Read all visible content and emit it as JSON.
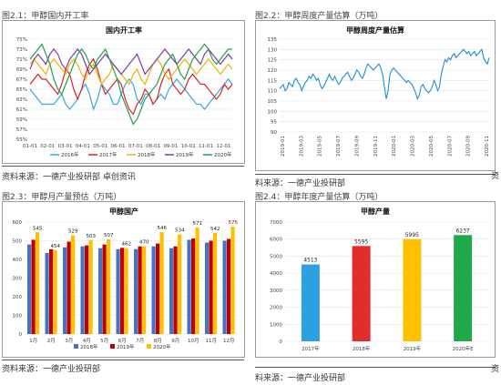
{
  "fig1": {
    "caption": "图2.1：甲醇国内开工率",
    "source": "资料来源：一德产业投研部  卓创资讯",
    "chart_data": {
      "type": "line",
      "title": "国内开工率",
      "yticks": [
        "75%",
        "73%",
        "71%",
        "69%",
        "67%",
        "65%",
        "63%",
        "61%",
        "59%",
        "57%",
        "55%"
      ],
      "ylim": [
        55,
        75
      ],
      "xticks": [
        "01-01",
        "02-01",
        "03-01",
        "04-01",
        "05-01",
        "06-01",
        "07-01",
        "08-01",
        "09-01",
        "10-01",
        "11-01",
        "12-01"
      ],
      "legend_position": "bottom",
      "series": [
        {
          "name": "2016年",
          "color": "#33aadd",
          "values": [
            65,
            64,
            63,
            62,
            62,
            62,
            62,
            63,
            64,
            62,
            61,
            62,
            63,
            65,
            66,
            64,
            61,
            63,
            66,
            65,
            64,
            62,
            62,
            64,
            66,
            67,
            66,
            63,
            62,
            64,
            64,
            62,
            63,
            64,
            63,
            65,
            66,
            67,
            66,
            65,
            64,
            63,
            62,
            62,
            61,
            62,
            63,
            64,
            65,
            66,
            67,
            66
          ]
        },
        {
          "name": "2017年",
          "color": "#dd2222",
          "values": [
            66,
            67,
            68,
            67,
            67,
            66,
            65,
            64,
            66,
            69,
            68,
            65,
            63,
            65,
            68,
            70,
            71,
            69,
            66,
            64,
            65,
            66,
            67,
            66,
            63,
            61,
            60,
            62,
            63,
            65,
            64,
            62,
            63,
            66,
            68,
            69,
            66,
            65,
            64,
            65,
            67,
            68,
            67,
            66,
            66,
            65,
            64,
            63,
            64,
            66,
            65,
            66
          ]
        },
        {
          "name": "2018年",
          "color": "#f0b400",
          "values": [
            70,
            71,
            70,
            69,
            68,
            70,
            71,
            70,
            69,
            68,
            70,
            71,
            70,
            68,
            67,
            69,
            70,
            68,
            66,
            67,
            68,
            70,
            69,
            68,
            67,
            66,
            68,
            69,
            67,
            66,
            68,
            70,
            71,
            70,
            68,
            67,
            68,
            69,
            70,
            71,
            70,
            69,
            68,
            69,
            70,
            71,
            70,
            69,
            68,
            69,
            70,
            69
          ]
        },
        {
          "name": "2019年",
          "color": "#7a3fa0",
          "values": [
            69,
            71,
            72,
            71,
            70,
            72,
            73,
            72,
            70,
            69,
            71,
            72,
            73,
            72,
            70,
            68,
            69,
            70,
            71,
            72,
            71,
            70,
            69,
            68,
            69,
            70,
            71,
            72,
            70,
            68,
            69,
            70,
            71,
            72,
            73,
            72,
            71,
            70,
            71,
            72,
            73,
            72,
            71,
            70,
            72,
            73,
            72,
            71,
            70,
            71,
            72,
            71
          ]
        },
        {
          "name": "2020年",
          "color": "#22a050",
          "values": [
            71,
            72,
            73,
            74,
            72,
            70,
            67,
            65,
            64,
            66,
            68,
            70,
            72,
            73,
            72,
            70,
            69,
            71,
            72,
            73,
            71,
            69,
            67,
            64,
            62,
            60,
            58,
            59,
            61,
            63,
            64,
            65,
            66,
            68,
            70,
            71,
            72,
            70,
            68,
            67,
            69,
            71,
            72,
            73,
            74,
            73,
            71,
            70,
            71,
            72,
            73,
            73
          ]
        }
      ]
    }
  },
  "fig2": {
    "caption": "图2.2：甲醇周度产量估算（万吨）",
    "source": "料来源：一德产业投研部",
    "chart_data": {
      "type": "line",
      "title": "甲醇周度产量估算",
      "yticks": [
        "135",
        "130",
        "125",
        "120",
        "115",
        "110",
        "105",
        "100",
        "95",
        "90"
      ],
      "ylim": [
        90,
        135
      ],
      "xticks": [
        "2019-01",
        "2019-03",
        "2019-05",
        "2019-07",
        "2019-09",
        "2019-11",
        "2020-01",
        "2020-03",
        "2020-05",
        "2020-07",
        "2020-09",
        "2020-11"
      ],
      "series": [
        {
          "name": "",
          "color": "#1f8fd6",
          "values": [
            111,
            112,
            113,
            110,
            111,
            114,
            113,
            112,
            115,
            116,
            114,
            113,
            110,
            112,
            114,
            115,
            117,
            116,
            118,
            117,
            115,
            116,
            113,
            111,
            112,
            114,
            116,
            118,
            116,
            115,
            117,
            115,
            113,
            114,
            116,
            117,
            118,
            119,
            117,
            115,
            116,
            118,
            120,
            119,
            117,
            116,
            118,
            121,
            123,
            122,
            121,
            120,
            121,
            122,
            123,
            121,
            118,
            112,
            106,
            110,
            118,
            120,
            121,
            120,
            119,
            118,
            117,
            116,
            115,
            114,
            115,
            114,
            113,
            111,
            109,
            106,
            108,
            112,
            113,
            111,
            110,
            109,
            110,
            112,
            115,
            113,
            110,
            112,
            118,
            122,
            125,
            124,
            126,
            125,
            127,
            128,
            126,
            127,
            128,
            129,
            130,
            129,
            128,
            129,
            127,
            128,
            129,
            127,
            128,
            129,
            130,
            126,
            124,
            123,
            126
          ]
        }
      ]
    }
  },
  "fig3": {
    "caption": "图2.3：甲醇月产量预估（万吨）",
    "source": "资料来源：一德产业投研部",
    "chart_data": {
      "type": "bar",
      "title": "甲醇国产",
      "categories": [
        "1月",
        "2月",
        "3月",
        "4月",
        "5月",
        "6月",
        "7月",
        "8月",
        "9月",
        "10月",
        "11月",
        "12月"
      ],
      "yticks": [
        "600",
        "500",
        "400",
        "300",
        "200",
        "100",
        "0"
      ],
      "ylim": [
        0,
        600
      ],
      "legend_position": "bottom",
      "series": [
        {
          "name": "2018年",
          "color": "#4472c4",
          "values": [
            480,
            435,
            465,
            470,
            460,
            455,
            455,
            470,
            460,
            505,
            490,
            500
          ]
        },
        {
          "name": "2019年",
          "color": "#c00000",
          "values": [
            505,
            454,
            495,
            475,
            480,
            462,
            470,
            485,
            470,
            512,
            500,
            510
          ]
        },
        {
          "name": "2020年",
          "color": "#ffc000",
          "values": [
            545,
            450,
            529,
            503,
            507,
            460,
            470,
            546,
            534,
            571,
            542,
            575
          ]
        }
      ],
      "labels": [
        "545",
        "454",
        "529",
        "503",
        "507",
        "462",
        "470",
        "546",
        "534",
        "571",
        "542",
        "575"
      ]
    }
  },
  "fig4": {
    "caption": "图2.4：甲醇年度产量估算（万吨）",
    "source": "料来源：一德产业投研部",
    "chart_data": {
      "type": "bar",
      "title": "甲醇产量",
      "categories": [
        "2017年",
        "2018年",
        "2019年",
        "2020年E"
      ],
      "values": [
        4513,
        5595,
        5995,
        6237
      ],
      "labels": [
        "4513",
        "5595",
        "5995",
        "6237"
      ],
      "colors": [
        "#2e9fe0",
        "#e22d2d",
        "#ffc000",
        "#21a84a"
      ],
      "yticks": [
        "7000",
        "6000",
        "5000",
        "4000",
        "3000",
        "2000",
        "1000",
        "0"
      ],
      "ylim": [
        0,
        7000
      ]
    }
  },
  "side_glyphs": [
    "资",
    "资"
  ]
}
